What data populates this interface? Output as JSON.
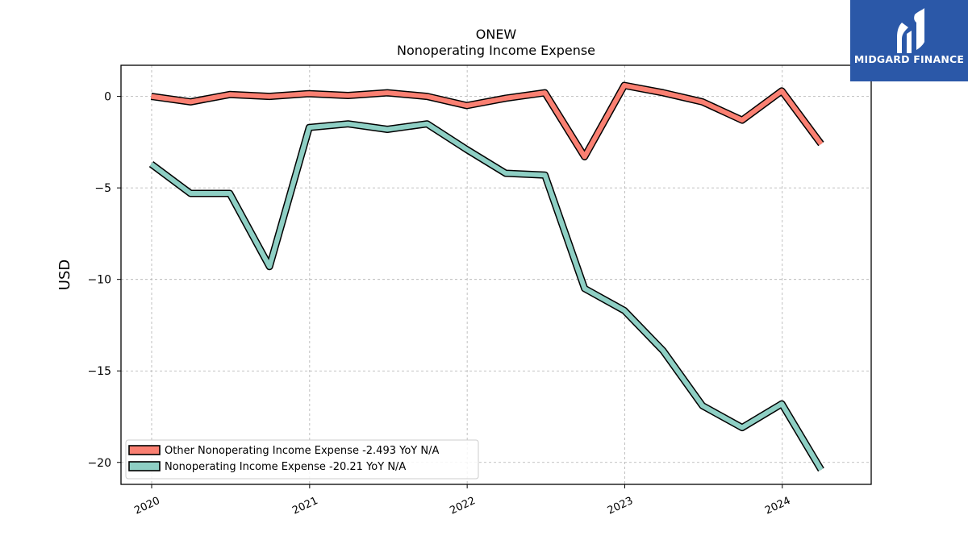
{
  "chart_data": {
    "type": "line",
    "title": "ONEW",
    "subtitle": "Nonoperating Income Expense",
    "xlabel": "",
    "ylabel": "USD",
    "x": [
      "2019-12-31",
      "2020-03-31",
      "2020-06-30",
      "2020-09-30",
      "2020-12-31",
      "2021-03-31",
      "2021-06-30",
      "2021-09-30",
      "2021-12-31",
      "2022-03-31",
      "2022-06-30",
      "2022-09-30",
      "2022-12-31",
      "2023-03-31",
      "2023-06-30",
      "2023-09-30",
      "2023-12-31",
      "2024-03-31"
    ],
    "xticks": [
      "2020",
      "2021",
      "2022",
      "2023",
      "2024"
    ],
    "xlim": [
      "2019-10-22",
      "2024-07-25"
    ],
    "yticks": [
      0,
      -5,
      -10,
      -15,
      -20
    ],
    "ylim": [
      -21.2,
      1.7
    ],
    "grid": true,
    "legend_position": "lower-left",
    "series": [
      {
        "name": "Other Nonoperating Income Expense  -2.493 YoY N/A",
        "color": "#fa8072",
        "values": [
          0.0,
          -0.3,
          0.1,
          0.0,
          0.15,
          0.05,
          0.2,
          0.0,
          -0.5,
          -0.1,
          0.2,
          -3.3,
          0.6,
          0.2,
          -0.3,
          -1.3,
          0.3,
          -2.6
        ]
      },
      {
        "name": "Nonoperating Income Expense  -20.21 YoY N/A",
        "color": "#8ecfc4",
        "values": [
          -3.7,
          -5.3,
          -5.3,
          -9.3,
          -1.7,
          -1.5,
          -1.8,
          -1.5,
          -2.9,
          -4.2,
          -4.3,
          -10.5,
          -11.7,
          -13.9,
          -16.9,
          -18.1,
          -16.8,
          -20.4
        ]
      }
    ]
  },
  "logo": {
    "text": "MIDGARD FINANCE",
    "background": "#2b58a8"
  }
}
